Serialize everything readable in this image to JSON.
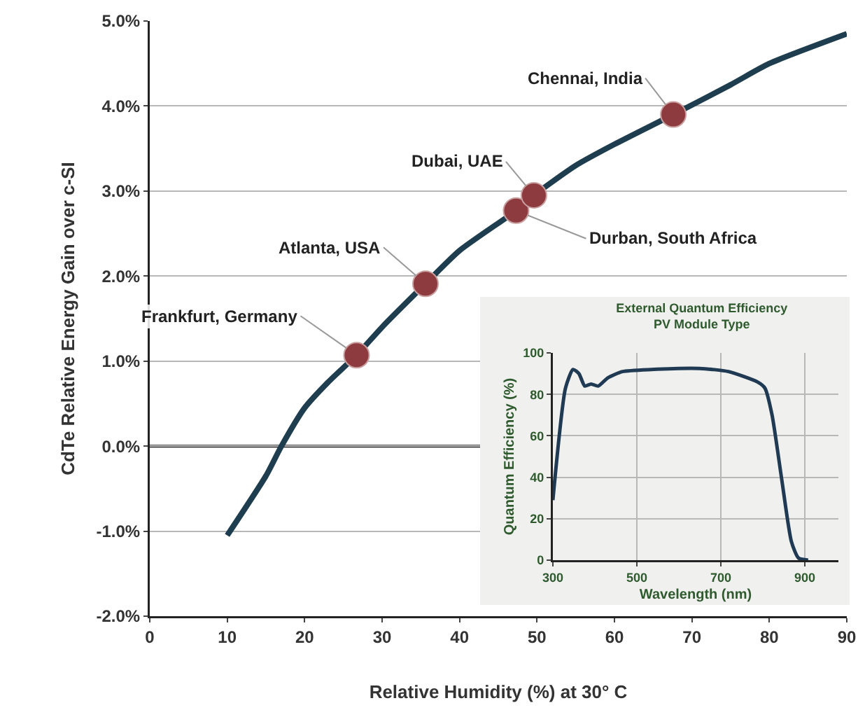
{
  "chart_data": [
    {
      "type": "line",
      "xlabel": "Relative Humidity (%) at 30° C",
      "ylabel": "CdTe Relative Energy Gain over c-SI",
      "xlim": [
        0,
        90
      ],
      "xticks": [
        0,
        10,
        20,
        30,
        40,
        50,
        60,
        70,
        80,
        90
      ],
      "ylim": [
        -2,
        5
      ],
      "yticks": [
        {
          "value": -2,
          "label": "-2.0%"
        },
        {
          "value": -1,
          "label": "-1.0%"
        },
        {
          "value": 0,
          "label": "0.0%"
        },
        {
          "value": 1,
          "label": "1.0%"
        },
        {
          "value": 2,
          "label": "2.0%"
        },
        {
          "value": 3,
          "label": "3.0%"
        },
        {
          "value": 4,
          "label": "4.0%"
        },
        {
          "value": 5,
          "label": "5.0%"
        }
      ],
      "grid": "y",
      "ref_lines": [
        {
          "axis": "y",
          "value": 0,
          "color": "#222222"
        }
      ],
      "series": [
        {
          "color": "#1e3d4f",
          "marker": "none",
          "x": [
            10,
            15,
            17,
            20,
            23,
            26.7,
            30,
            35.6,
            40,
            47.3,
            49.6,
            55,
            60,
            67.6,
            75,
            80,
            90
          ],
          "values": [
            -1.05,
            -0.35,
            0,
            0.45,
            0.75,
            1.07,
            1.4,
            1.91,
            2.3,
            2.77,
            2.95,
            3.3,
            3.55,
            3.9,
            4.25,
            4.5,
            4.85
          ]
        },
        {
          "type": "scatter",
          "color": "#8e3b40",
          "marker": "circle",
          "x": [
            26.7,
            35.6,
            47.3,
            49.6,
            67.6
          ],
          "values": [
            1.07,
            1.91,
            2.77,
            2.95,
            3.9
          ]
        }
      ],
      "annotations": [
        {
          "text": "Frankfurt, Germany",
          "x": 26.7,
          "y": 1.07
        },
        {
          "text": "Atlanta, USA",
          "x": 35.6,
          "y": 1.91
        },
        {
          "text": "Durban, South Africa",
          "x": 47.3,
          "y": 2.77
        },
        {
          "text": "Dubai, UAE",
          "x": 49.6,
          "y": 2.95
        },
        {
          "text": "Chennai, India",
          "x": 67.6,
          "y": 3.9
        }
      ]
    },
    {
      "type": "line",
      "title": "External Quantum Efficiency",
      "subtitle": "PV Module Type",
      "xlabel": "Wavelength (nm)",
      "ylabel": "Quantum Efficiency (%)",
      "xlim": [
        300,
        980
      ],
      "xticks": [
        300,
        500,
        700,
        900
      ],
      "ylim": [
        0,
        100
      ],
      "yticks": [
        0,
        20,
        40,
        60,
        80,
        100
      ],
      "grid": true,
      "series": [
        {
          "color": "#1f3a52",
          "x": [
            300,
            330,
            348,
            362,
            376,
            391,
            408,
            431,
            466,
            534,
            649,
            718,
            787,
            805,
            822,
            845,
            868,
            885,
            908
          ],
          "values": [
            29,
            83,
            92,
            90,
            84,
            85,
            84,
            88,
            91,
            92,
            92.5,
            91,
            86,
            83,
            70,
            39,
            9,
            1,
            0
          ]
        }
      ]
    }
  ]
}
